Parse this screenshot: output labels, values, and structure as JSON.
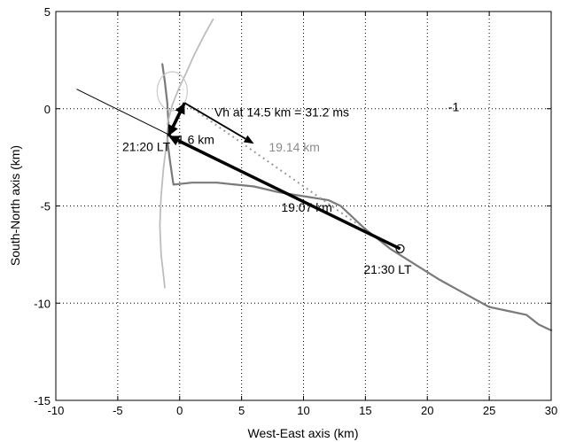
{
  "chart_data": {
    "type": "line",
    "xlabel": "West-East axis (km)",
    "ylabel": "South-North axis (km)",
    "xlim": [
      -10,
      30
    ],
    "ylim": [
      -15,
      5
    ],
    "xticks": [
      "-10",
      "-5",
      "0",
      "5",
      "10",
      "15",
      "20",
      "25",
      "30"
    ],
    "yticks": [
      "5",
      "0",
      "-5",
      "-10",
      "-15"
    ],
    "grid": true,
    "series": [
      {
        "style": "dark-gray track",
        "color": "#7a7a7a",
        "x": [
          -1.4,
          -1.2,
          -1.0,
          -0.9,
          -1.0,
          -0.8,
          -0.6,
          -0.5,
          1.0,
          3.0,
          4.5,
          6.0,
          8.0,
          10.0,
          12.0,
          13.0,
          15.0,
          17.0,
          19.0,
          21.0,
          23.0,
          25.0,
          26.5,
          28.0,
          29.0,
          30.0
        ],
        "y": [
          2.3,
          1.4,
          0.3,
          -0.8,
          -1.6,
          -2.6,
          -3.5,
          -3.9,
          -3.8,
          -3.8,
          -3.9,
          -4.0,
          -4.3,
          -4.5,
          -4.7,
          -5.0,
          -6.2,
          -7.2,
          -8.0,
          -8.8,
          -9.5,
          -10.2,
          -10.4,
          -10.6,
          -11.1,
          -11.4
        ]
      },
      {
        "style": "light-gray track north",
        "color": "#bdbdbd",
        "x": [
          -1.0,
          -0.6,
          -0.1,
          0.5,
          1.2,
          2.0,
          2.7
        ],
        "y": [
          -0.8,
          0.2,
          1.0,
          1.8,
          2.8,
          3.8,
          4.6
        ]
      },
      {
        "style": "light-gray track south",
        "color": "#bdbdbd",
        "x": [
          -1.0,
          -1.3,
          -1.5,
          -1.6,
          -1.5,
          -1.3,
          -1.2
        ],
        "y": [
          -1.5,
          -3.0,
          -4.5,
          -6.0,
          -7.5,
          -8.6,
          -9.2
        ]
      },
      {
        "style": "thin black reference line",
        "color": "#000000",
        "x": [
          -8.3,
          17.8
        ],
        "y": [
          1.0,
          -7.2
        ]
      }
    ],
    "vectors": [
      {
        "from": [
          -0.9,
          -1.4
        ],
        "to": [
          0.4,
          0.3
        ],
        "label": "1.6 km",
        "bold": true
      },
      {
        "from": [
          17.8,
          -7.2
        ],
        "to": [
          -0.9,
          -1.4
        ],
        "label": "19.07 km",
        "bold": false
      },
      {
        "from": [
          0.4,
          0.3
        ],
        "to": [
          6.0,
          -1.8
        ],
        "label": "Vh at 14.5 km = 31.2 ms",
        "label_sup": "-1",
        "bold": false
      }
    ],
    "dotted_path": {
      "x": [
        0.4,
        14.5
      ],
      "y": [
        0.3,
        -6.0
      ],
      "label": "19.14 km"
    },
    "markers": [
      {
        "x": -0.9,
        "y": -1.4,
        "label": "21:20 LT"
      },
      {
        "x": 17.8,
        "y": -7.2,
        "label": "21:30 LT"
      }
    ]
  }
}
